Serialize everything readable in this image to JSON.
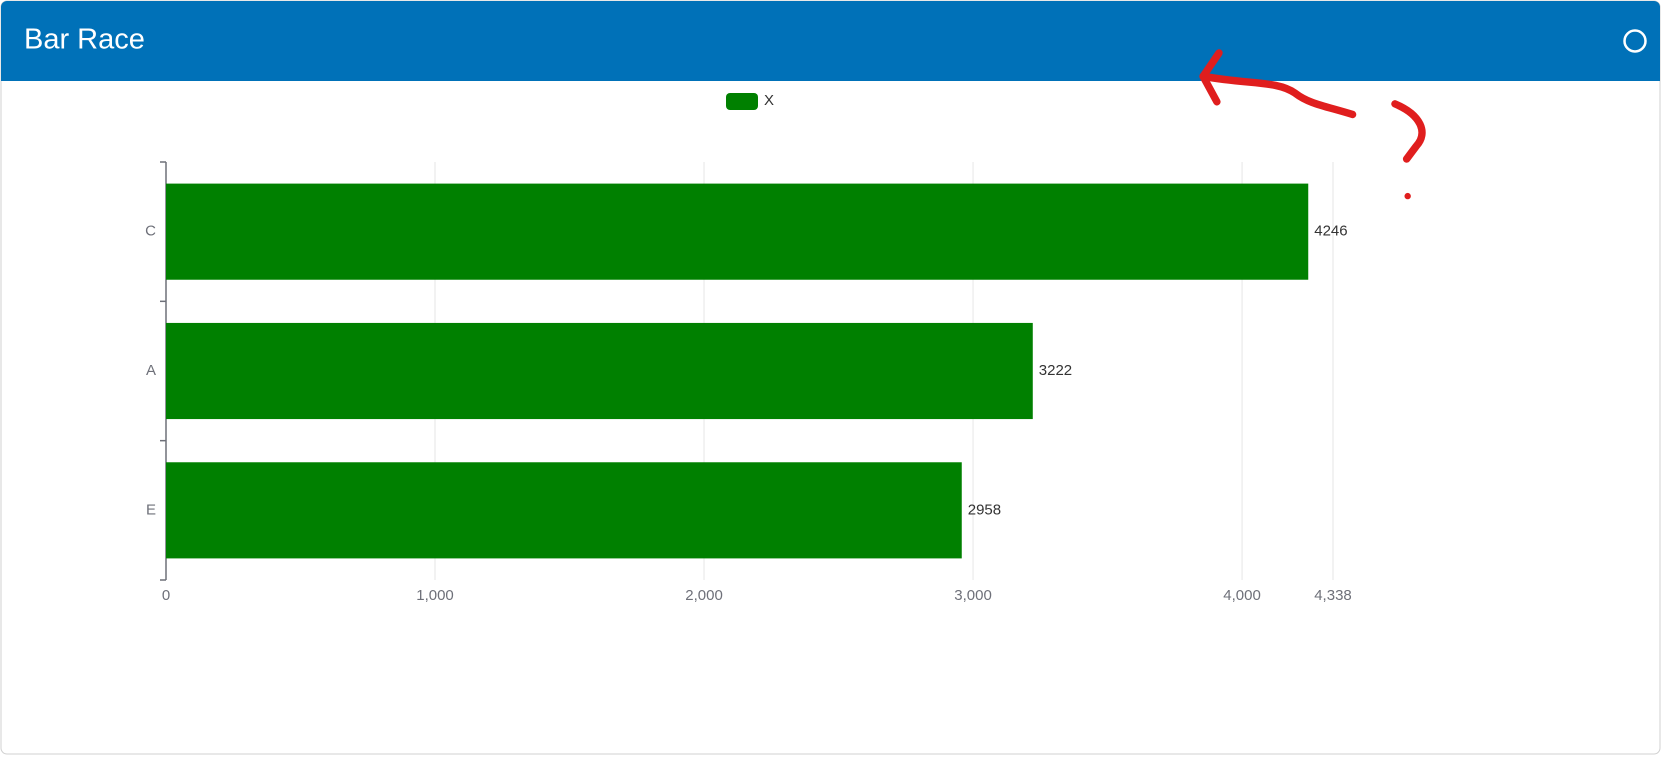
{
  "chart_data": {
    "type": "bar",
    "orientation": "horizontal",
    "title": "Bar Race",
    "categories": [
      "C",
      "A",
      "E"
    ],
    "series": [
      {
        "name": "X",
        "color": "#008000",
        "values": [
          4246,
          3222,
          2958
        ]
      }
    ],
    "xlim": [
      0,
      4338
    ],
    "xticks": [
      0,
      {
        "value": 1000,
        "label": "1,000"
      },
      {
        "value": 2000,
        "label": "2,000"
      },
      {
        "value": 3000,
        "label": "3,000"
      },
      {
        "value": 4000,
        "label": "4,000"
      },
      {
        "value": 4338,
        "label": "4,338"
      }
    ],
    "grid": true,
    "legend": "top"
  }
}
